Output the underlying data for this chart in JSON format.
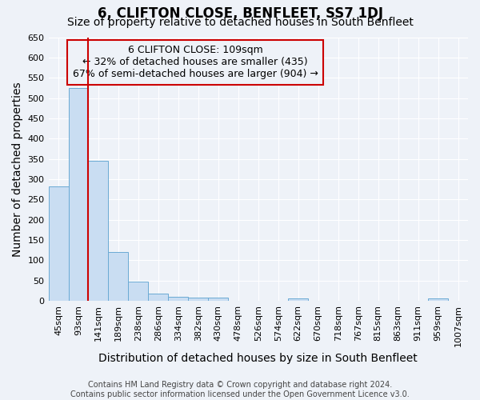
{
  "title": "6, CLIFTON CLOSE, BENFLEET, SS7 1DJ",
  "subtitle": "Size of property relative to detached houses in South Benfleet",
  "xlabel": "Distribution of detached houses by size in South Benfleet",
  "ylabel": "Number of detached properties",
  "footer1": "Contains HM Land Registry data © Crown copyright and database right 2024.",
  "footer2": "Contains public sector information licensed under the Open Government Licence v3.0.",
  "categories": [
    "45sqm",
    "93sqm",
    "141sqm",
    "189sqm",
    "238sqm",
    "286sqm",
    "334sqm",
    "382sqm",
    "430sqm",
    "478sqm",
    "526sqm",
    "574sqm",
    "622sqm",
    "670sqm",
    "718sqm",
    "767sqm",
    "815sqm",
    "863sqm",
    "911sqm",
    "959sqm",
    "1007sqm"
  ],
  "values": [
    283,
    525,
    345,
    120,
    48,
    18,
    10,
    8,
    7,
    0,
    0,
    0,
    5,
    0,
    0,
    0,
    0,
    0,
    0,
    5,
    0
  ],
  "bar_color": "#c9ddf2",
  "bar_edge_color": "#6aaad4",
  "vline_color": "#cc0000",
  "vline_pos": 1.5,
  "ylim": [
    0,
    650
  ],
  "yticks": [
    0,
    50,
    100,
    150,
    200,
    250,
    300,
    350,
    400,
    450,
    500,
    550,
    600,
    650
  ],
  "annotation_text_line1": "6 CLIFTON CLOSE: 109sqm",
  "annotation_text_line2": "← 32% of detached houses are smaller (435)",
  "annotation_text_line3": "67% of semi-detached houses are larger (904) →",
  "bg_color": "#eef2f8",
  "grid_color": "#ffffff",
  "title_fontsize": 12,
  "subtitle_fontsize": 10,
  "label_fontsize": 10,
  "tick_fontsize": 8,
  "footer_fontsize": 7,
  "ann_fontsize": 9
}
